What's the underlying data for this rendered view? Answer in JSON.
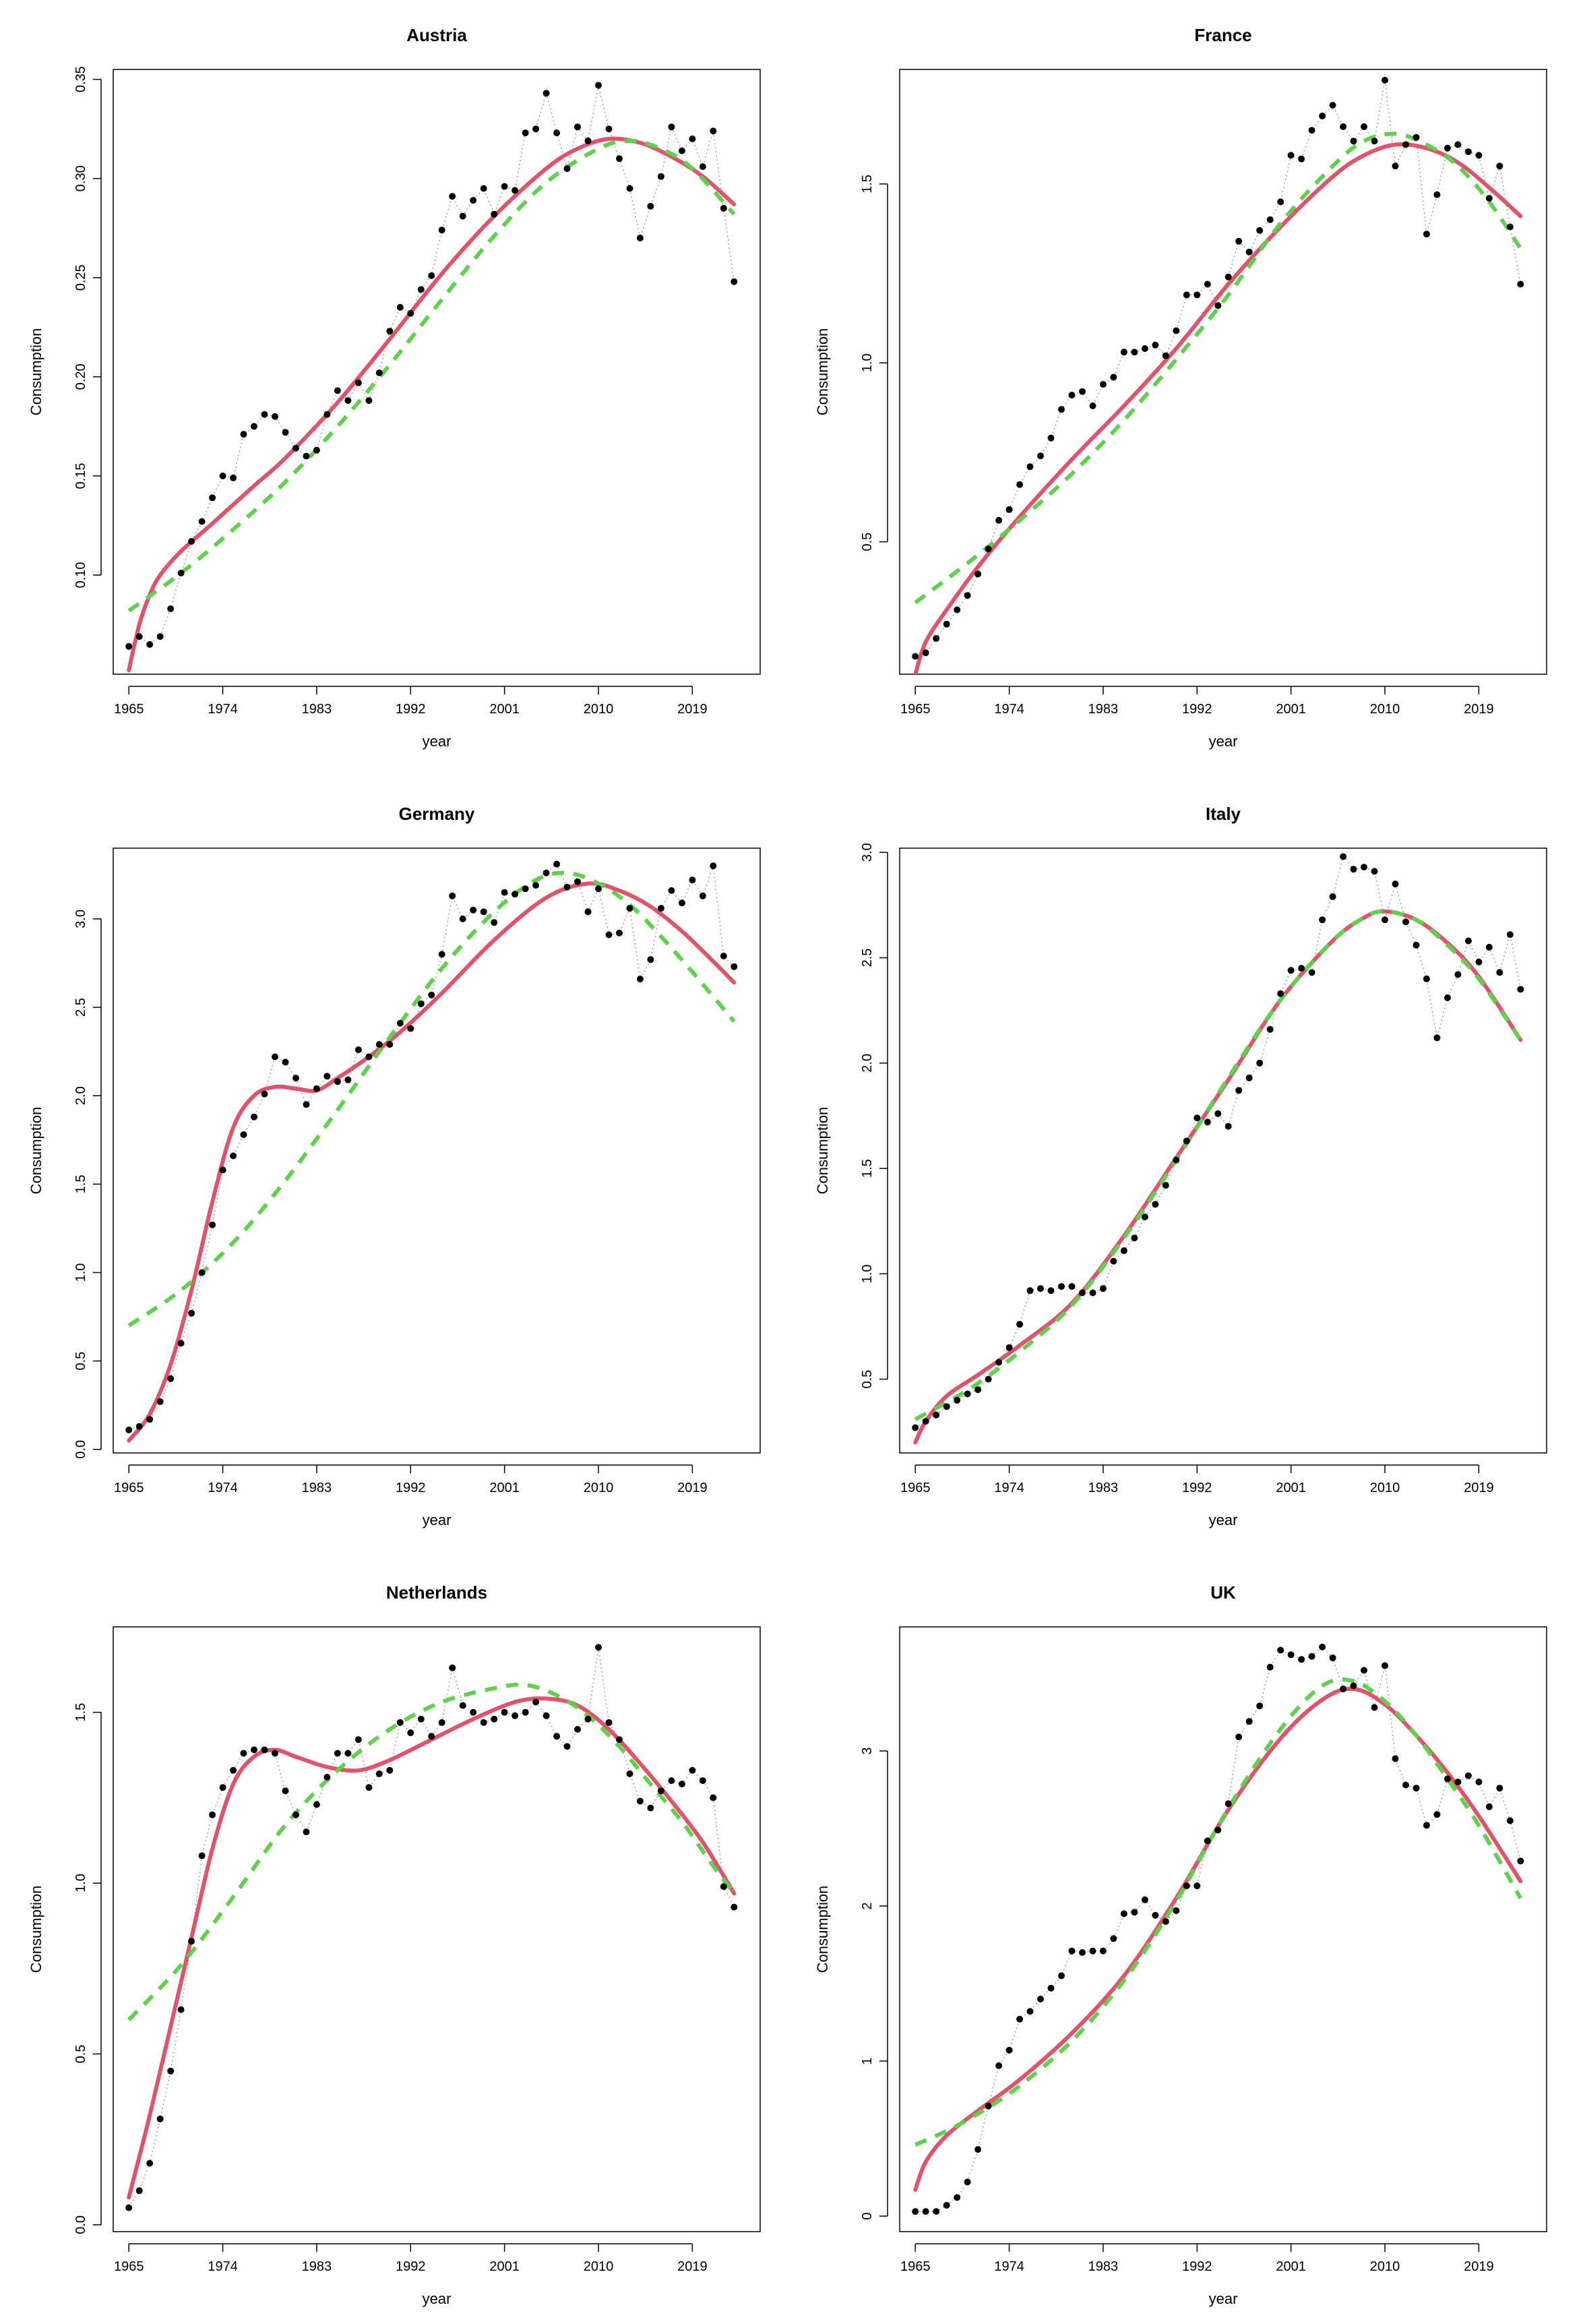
{
  "chart_data": [
    {
      "type": "line",
      "title": "Austria",
      "xlabel": "year",
      "ylabel": "Consumption",
      "xlim": [
        1963.5,
        2025.5
      ],
      "ylim": [
        0.05,
        0.355
      ],
      "xticks": [
        1965,
        1974,
        1983,
        1992,
        2001,
        2010,
        2019
      ],
      "xtick_labels": [
        "1965",
        "1974",
        "1983",
        "1992",
        "2001",
        "2010",
        "2019"
      ],
      "yticks": [
        0.1,
        0.15,
        0.2,
        0.25,
        0.3,
        0.35
      ],
      "ytick_labels": [
        "0.10",
        "0.15",
        "0.20",
        "0.25",
        "0.30",
        "0.35"
      ],
      "years_start": 1965,
      "points": [
        0.064,
        0.069,
        0.065,
        0.069,
        0.083,
        0.101,
        0.117,
        0.127,
        0.139,
        0.15,
        0.149,
        0.171,
        0.175,
        0.181,
        0.18,
        0.172,
        0.164,
        0.16,
        0.163,
        0.181,
        0.193,
        0.188,
        0.197,
        0.188,
        0.202,
        0.223,
        0.235,
        0.232,
        0.244,
        0.251,
        0.274,
        0.291,
        0.281,
        0.289,
        0.295,
        0.282,
        0.296,
        0.294,
        0.323,
        0.325,
        0.343,
        0.323,
        0.305,
        0.326,
        0.319,
        0.347,
        0.325,
        0.31,
        0.295,
        0.27,
        0.286,
        0.301,
        0.326,
        0.314,
        0.32,
        0.306,
        0.324,
        0.285,
        0.248
      ],
      "series": [
        {
          "name": "smooth fit (solid)",
          "color": "#DF536B",
          "style": "solid",
          "x": [
            1965,
            1966,
            1967,
            1968,
            1970,
            1973,
            1977,
            1980,
            1985,
            1990,
            1995,
            2000,
            2005,
            2008,
            2011,
            2014,
            2017,
            2020,
            2023
          ],
          "y": [
            0.052,
            0.075,
            0.09,
            0.1,
            0.112,
            0.126,
            0.145,
            0.159,
            0.187,
            0.219,
            0.252,
            0.281,
            0.305,
            0.315,
            0.32,
            0.318,
            0.311,
            0.301,
            0.287
          ]
        },
        {
          "name": "polynomial fit (dashed)",
          "color": "#61D04F",
          "style": "dashed",
          "x": [
            1965,
            1970,
            1975,
            1980,
            1985,
            1990,
            1995,
            2000,
            2005,
            2010,
            2013,
            2016,
            2019,
            2023
          ],
          "y": [
            0.082,
            0.101,
            0.123,
            0.147,
            0.175,
            0.206,
            0.239,
            0.271,
            0.298,
            0.315,
            0.319,
            0.315,
            0.305,
            0.282
          ]
        }
      ]
    },
    {
      "type": "line",
      "title": "France",
      "xlabel": "year",
      "ylabel": "Consumption",
      "xlim": [
        1963.5,
        2025.5
      ],
      "ylim": [
        0.13,
        1.82
      ],
      "xticks": [
        1965,
        1974,
        1983,
        1992,
        2001,
        2010,
        2019
      ],
      "xtick_labels": [
        "1965",
        "1974",
        "1983",
        "1992",
        "2001",
        "2010",
        "2019"
      ],
      "yticks": [
        0.5,
        1.0,
        1.5
      ],
      "ytick_labels": [
        "0.5",
        "1.0",
        "1.5"
      ],
      "years_start": 1965,
      "points": [
        0.18,
        0.19,
        0.23,
        0.27,
        0.31,
        0.35,
        0.41,
        0.48,
        0.56,
        0.59,
        0.66,
        0.71,
        0.74,
        0.79,
        0.87,
        0.91,
        0.92,
        0.88,
        0.94,
        0.96,
        1.03,
        1.03,
        1.04,
        1.05,
        1.02,
        1.09,
        1.19,
        1.19,
        1.22,
        1.16,
        1.24,
        1.34,
        1.31,
        1.37,
        1.4,
        1.45,
        1.58,
        1.57,
        1.65,
        1.69,
        1.72,
        1.66,
        1.62,
        1.66,
        1.62,
        1.79,
        1.55,
        1.61,
        1.63,
        1.36,
        1.47,
        1.6,
        1.61,
        1.59,
        1.58,
        1.46,
        1.55,
        1.38,
        1.22
      ],
      "series": [
        {
          "name": "smooth fit (solid)",
          "color": "#DF536B",
          "style": "solid",
          "x": [
            1965,
            1966,
            1968,
            1971,
            1975,
            1980,
            1985,
            1990,
            1995,
            2000,
            2005,
            2008,
            2011,
            2014,
            2017,
            2020,
            2023
          ],
          "y": [
            0.13,
            0.22,
            0.31,
            0.43,
            0.57,
            0.73,
            0.88,
            1.04,
            1.22,
            1.38,
            1.52,
            1.58,
            1.61,
            1.6,
            1.56,
            1.49,
            1.41
          ]
        },
        {
          "name": "polynomial fit (dashed)",
          "color": "#61D04F",
          "style": "dashed",
          "x": [
            1965,
            1970,
            1975,
            1980,
            1985,
            1990,
            1995,
            2000,
            2005,
            2008,
            2011,
            2014,
            2017,
            2020,
            2023
          ],
          "y": [
            0.33,
            0.44,
            0.56,
            0.69,
            0.84,
            1.01,
            1.19,
            1.39,
            1.55,
            1.62,
            1.64,
            1.61,
            1.55,
            1.45,
            1.32
          ]
        }
      ]
    },
    {
      "type": "line",
      "title": "Germany",
      "xlabel": "year",
      "ylabel": "Consumption",
      "xlim": [
        1963.5,
        2025.5
      ],
      "ylim": [
        -0.02,
        3.4
      ],
      "xticks": [
        1965,
        1974,
        1983,
        1992,
        2001,
        2010,
        2019
      ],
      "xtick_labels": [
        "1965",
        "1974",
        "1983",
        "1992",
        "2001",
        "2010",
        "2019"
      ],
      "yticks": [
        0.0,
        0.5,
        1.0,
        1.5,
        2.0,
        2.5,
        3.0
      ],
      "ytick_labels": [
        "0.0",
        "0.5",
        "1.0",
        "1.5",
        "2.0",
        "2.5",
        "3.0"
      ],
      "years_start": 1965,
      "points": [
        0.11,
        0.13,
        0.17,
        0.27,
        0.4,
        0.6,
        0.77,
        1.0,
        1.27,
        1.58,
        1.66,
        1.78,
        1.88,
        2.01,
        2.22,
        2.19,
        2.1,
        1.95,
        2.04,
        2.11,
        2.08,
        2.09,
        2.26,
        2.22,
        2.29,
        2.29,
        2.41,
        2.38,
        2.52,
        2.57,
        2.8,
        3.13,
        3.0,
        3.05,
        3.04,
        2.98,
        3.15,
        3.14,
        3.17,
        3.19,
        3.26,
        3.31,
        3.18,
        3.21,
        3.04,
        3.17,
        2.91,
        2.92,
        3.06,
        2.66,
        2.77,
        3.06,
        3.16,
        3.09,
        3.22,
        3.13,
        3.3,
        2.79,
        2.73
      ],
      "series": [
        {
          "name": "smooth fit (solid)",
          "color": "#DF536B",
          "style": "solid",
          "x": [
            1965,
            1967,
            1969,
            1971,
            1973,
            1975,
            1977,
            1979,
            1981,
            1983,
            1985,
            1988,
            1991,
            1995,
            2000,
            2005,
            2009,
            2012,
            2015,
            2018,
            2021,
            2023
          ],
          "y": [
            0.05,
            0.2,
            0.48,
            0.9,
            1.4,
            1.82,
            2.0,
            2.05,
            2.04,
            2.03,
            2.1,
            2.22,
            2.36,
            2.58,
            2.88,
            3.12,
            3.2,
            3.16,
            3.07,
            2.93,
            2.76,
            2.64
          ]
        },
        {
          "name": "polynomial fit (dashed)",
          "color": "#61D04F",
          "style": "dashed",
          "x": [
            1965,
            1970,
            1975,
            1980,
            1985,
            1990,
            1995,
            2000,
            2004,
            2007,
            2010,
            2013,
            2016,
            2019,
            2023
          ],
          "y": [
            0.7,
            0.9,
            1.17,
            1.52,
            1.92,
            2.33,
            2.72,
            3.04,
            3.22,
            3.26,
            3.2,
            3.08,
            2.9,
            2.7,
            2.42
          ]
        }
      ]
    },
    {
      "type": "line",
      "title": "Italy",
      "xlabel": "year",
      "ylabel": "Consumption",
      "xlim": [
        1963.5,
        2025.5
      ],
      "ylim": [
        0.15,
        3.02
      ],
      "xticks": [
        1965,
        1974,
        1983,
        1992,
        2001,
        2010,
        2019
      ],
      "xtick_labels": [
        "1965",
        "1974",
        "1983",
        "1992",
        "2001",
        "2010",
        "2019"
      ],
      "yticks": [
        0.5,
        1.0,
        1.5,
        2.0,
        2.5,
        3.0
      ],
      "ytick_labels": [
        "0.5",
        "1.0",
        "1.5",
        "2.0",
        "2.5",
        "3.0"
      ],
      "years_start": 1965,
      "points": [
        0.27,
        0.3,
        0.33,
        0.37,
        0.4,
        0.43,
        0.45,
        0.5,
        0.58,
        0.65,
        0.76,
        0.92,
        0.93,
        0.92,
        0.94,
        0.94,
        0.91,
        0.91,
        0.93,
        1.06,
        1.11,
        1.17,
        1.27,
        1.33,
        1.42,
        1.54,
        1.63,
        1.74,
        1.72,
        1.76,
        1.7,
        1.87,
        1.93,
        2.0,
        2.16,
        2.33,
        2.44,
        2.45,
        2.43,
        2.68,
        2.79,
        2.98,
        2.92,
        2.93,
        2.91,
        2.68,
        2.85,
        2.67,
        2.56,
        2.4,
        2.12,
        2.31,
        2.42,
        2.58,
        2.48,
        2.55,
        2.43,
        2.61,
        2.35
      ],
      "series": [
        {
          "name": "smooth fit (solid)",
          "color": "#DF536B",
          "style": "solid",
          "x": [
            1965,
            1966,
            1968,
            1971,
            1975,
            1980,
            1985,
            1990,
            1995,
            2000,
            2005,
            2008,
            2010,
            2013,
            2016,
            2019,
            2023
          ],
          "y": [
            0.2,
            0.3,
            0.42,
            0.52,
            0.66,
            0.86,
            1.18,
            1.55,
            1.92,
            2.3,
            2.58,
            2.69,
            2.72,
            2.68,
            2.57,
            2.41,
            2.11
          ]
        },
        {
          "name": "polynomial fit (dashed)",
          "color": "#61D04F",
          "style": "dashed",
          "x": [
            1965,
            1968,
            1971,
            1975,
            1980,
            1985,
            1990,
            1995,
            2000,
            2005,
            2008,
            2010,
            2013,
            2016,
            2019,
            2023
          ],
          "y": [
            0.31,
            0.39,
            0.48,
            0.63,
            0.85,
            1.17,
            1.54,
            1.93,
            2.3,
            2.58,
            2.69,
            2.72,
            2.68,
            2.56,
            2.4,
            2.11
          ]
        }
      ]
    },
    {
      "type": "line",
      "title": "Netherlands",
      "xlabel": "year",
      "ylabel": "Consumption",
      "xlim": [
        1963.5,
        2025.5
      ],
      "ylim": [
        -0.02,
        1.75
      ],
      "xticks": [
        1965,
        1974,
        1983,
        1992,
        2001,
        2010,
        2019
      ],
      "xtick_labels": [
        "1965",
        "1974",
        "1983",
        "1992",
        "2001",
        "2010",
        "2019"
      ],
      "yticks": [
        0.0,
        0.5,
        1.0,
        1.5
      ],
      "ytick_labels": [
        "0.0",
        "0.5",
        "1.0",
        "1.5"
      ],
      "years_start": 1965,
      "points": [
        0.05,
        0.1,
        0.18,
        0.31,
        0.45,
        0.63,
        0.83,
        1.08,
        1.2,
        1.28,
        1.33,
        1.38,
        1.39,
        1.39,
        1.38,
        1.27,
        1.2,
        1.15,
        1.23,
        1.31,
        1.38,
        1.38,
        1.42,
        1.28,
        1.32,
        1.33,
        1.47,
        1.44,
        1.48,
        1.43,
        1.47,
        1.63,
        1.52,
        1.5,
        1.47,
        1.48,
        1.5,
        1.49,
        1.5,
        1.53,
        1.49,
        1.43,
        1.4,
        1.45,
        1.48,
        1.69,
        1.47,
        1.42,
        1.32,
        1.24,
        1.22,
        1.27,
        1.3,
        1.29,
        1.33,
        1.3,
        1.25,
        0.99,
        0.93
      ],
      "series": [
        {
          "name": "smooth fit (solid)",
          "color": "#DF536B",
          "style": "solid",
          "x": [
            1965,
            1967,
            1969,
            1971,
            1973,
            1975,
            1977,
            1979,
            1981,
            1984,
            1987,
            1990,
            1994,
            1998,
            2002,
            2005,
            2008,
            2011,
            2014,
            2017,
            2020,
            2023
          ],
          "y": [
            0.08,
            0.32,
            0.58,
            0.84,
            1.1,
            1.29,
            1.37,
            1.39,
            1.37,
            1.34,
            1.33,
            1.36,
            1.42,
            1.48,
            1.53,
            1.54,
            1.52,
            1.45,
            1.35,
            1.24,
            1.12,
            0.97
          ]
        },
        {
          "name": "polynomial fit (dashed)",
          "color": "#61D04F",
          "style": "dashed",
          "x": [
            1965,
            1970,
            1975,
            1980,
            1985,
            1990,
            1995,
            2000,
            2003,
            2006,
            2009,
            2012,
            2015,
            2018,
            2021,
            2023
          ],
          "y": [
            0.6,
            0.76,
            0.96,
            1.17,
            1.33,
            1.45,
            1.53,
            1.57,
            1.58,
            1.55,
            1.49,
            1.4,
            1.29,
            1.18,
            1.05,
            0.97
          ]
        }
      ]
    },
    {
      "type": "line",
      "title": "UK",
      "xlabel": "year",
      "ylabel": "Consumption",
      "xlim": [
        1963.5,
        2025.5
      ],
      "ylim": [
        -0.1,
        3.8
      ],
      "xticks": [
        1965,
        1974,
        1983,
        1992,
        2001,
        2010,
        2019
      ],
      "xtick_labels": [
        "1965",
        "1974",
        "1983",
        "1992",
        "2001",
        "2010",
        "2019"
      ],
      "yticks": [
        0,
        1,
        2,
        3
      ],
      "ytick_labels": [
        "0",
        "1",
        "2",
        "3"
      ],
      "years_start": 1965,
      "points": [
        0.03,
        0.03,
        0.03,
        0.07,
        0.12,
        0.22,
        0.43,
        0.71,
        0.97,
        1.07,
        1.27,
        1.32,
        1.4,
        1.47,
        1.55,
        1.71,
        1.7,
        1.71,
        1.71,
        1.79,
        1.95,
        1.96,
        2.04,
        1.94,
        1.9,
        1.97,
        2.13,
        2.13,
        2.42,
        2.49,
        2.66,
        3.09,
        3.19,
        3.29,
        3.54,
        3.65,
        3.62,
        3.59,
        3.61,
        3.67,
        3.6,
        3.4,
        3.42,
        3.52,
        3.28,
        3.55,
        2.95,
        2.78,
        2.76,
        2.52,
        2.59,
        2.82,
        2.8,
        2.84,
        2.8,
        2.64,
        2.76,
        2.55,
        2.29
      ],
      "series": [
        {
          "name": "smooth fit (solid)",
          "color": "#DF536B",
          "style": "solid",
          "x": [
            1965,
            1966,
            1968,
            1971,
            1975,
            1980,
            1985,
            1990,
            1995,
            2000,
            2004,
            2007,
            2010,
            2013,
            2016,
            2019,
            2023
          ],
          "y": [
            0.17,
            0.35,
            0.52,
            0.68,
            0.88,
            1.18,
            1.55,
            2.05,
            2.62,
            3.08,
            3.33,
            3.4,
            3.3,
            3.1,
            2.86,
            2.58,
            2.16
          ]
        },
        {
          "name": "polynomial fit (dashed)",
          "color": "#61D04F",
          "style": "dashed",
          "x": [
            1965,
            1968,
            1971,
            1975,
            1980,
            1985,
            1990,
            1995,
            2000,
            2004,
            2007,
            2010,
            2013,
            2016,
            2019,
            2023
          ],
          "y": [
            0.46,
            0.55,
            0.66,
            0.84,
            1.13,
            1.52,
            2.03,
            2.63,
            3.14,
            3.42,
            3.45,
            3.32,
            3.1,
            2.82,
            2.52,
            2.05
          ]
        }
      ]
    }
  ]
}
